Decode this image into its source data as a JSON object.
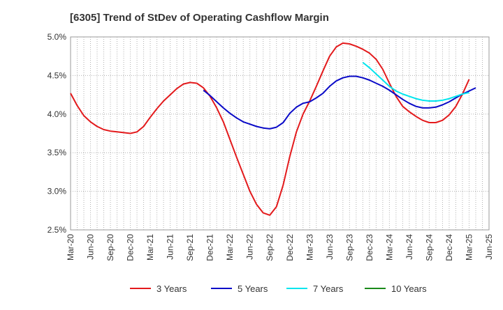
{
  "chart_data": {
    "type": "line",
    "title": "[6305]  Trend of StDev of Operating Cashflow Margin",
    "xlabel": "",
    "ylabel": "",
    "ylim": [
      2.5,
      5.0
    ],
    "y_ticks": [
      "2.5%",
      "3.0%",
      "3.5%",
      "4.0%",
      "4.5%",
      "5.0%"
    ],
    "y_tick_values": [
      2.5,
      3.0,
      3.5,
      4.0,
      4.5,
      5.0
    ],
    "x_ticks": [
      "Mar-20",
      "Jun-20",
      "Sep-20",
      "Dec-20",
      "Mar-21",
      "Jun-21",
      "Sep-21",
      "Dec-21",
      "Mar-22",
      "Jun-22",
      "Sep-22",
      "Dec-22",
      "Mar-23",
      "Jun-23",
      "Sep-23",
      "Dec-23",
      "Mar-24",
      "Jun-24",
      "Sep-24",
      "Dec-24",
      "Mar-25",
      "Jun-25"
    ],
    "grid": true,
    "legend_position": "bottom",
    "series": [
      {
        "name": "3 Years",
        "color": "#e31a1c",
        "start_index": 0,
        "values": [
          4.27,
          4.11,
          3.98,
          3.9,
          3.84,
          3.8,
          3.78,
          3.77,
          3.76,
          3.75,
          3.77,
          3.84,
          3.96,
          4.07,
          4.17,
          4.25,
          4.33,
          4.39,
          4.41,
          4.4,
          4.34,
          4.23,
          4.08,
          3.9,
          3.67,
          3.44,
          3.22,
          3.0,
          2.83,
          2.72,
          2.69,
          2.8,
          3.08,
          3.45,
          3.77,
          4.0,
          4.17,
          4.36,
          4.56,
          4.75,
          4.87,
          4.92,
          4.91,
          4.88,
          4.84,
          4.79,
          4.71,
          4.58,
          4.4,
          4.23,
          4.1,
          4.03,
          3.97,
          3.92,
          3.89,
          3.89,
          3.92,
          3.99,
          4.1,
          4.26,
          4.45
        ]
      },
      {
        "name": "5 Years",
        "color": "#0a0ac8",
        "start_index": 20,
        "values": [
          4.31,
          4.24,
          4.16,
          4.08,
          4.01,
          3.95,
          3.9,
          3.87,
          3.84,
          3.82,
          3.81,
          3.83,
          3.89,
          4.01,
          4.09,
          4.14,
          4.16,
          4.21,
          4.27,
          4.36,
          4.43,
          4.47,
          4.49,
          4.49,
          4.47,
          4.44,
          4.4,
          4.36,
          4.31,
          4.25,
          4.19,
          4.14,
          4.1,
          4.08,
          4.08,
          4.09,
          4.12,
          4.16,
          4.21,
          4.26,
          4.3,
          4.34
        ]
      },
      {
        "name": "7 Years",
        "color": "#00e5ee",
        "start_index": 44,
        "values": [
          4.67,
          4.6,
          4.52,
          4.44,
          4.36,
          4.3,
          4.26,
          4.23,
          4.2,
          4.18,
          4.17,
          4.17,
          4.18,
          4.2,
          4.23,
          4.26,
          4.28
        ]
      },
      {
        "name": "10 Years",
        "color": "#1a8a1a",
        "start_index": 0,
        "values": []
      }
    ]
  }
}
